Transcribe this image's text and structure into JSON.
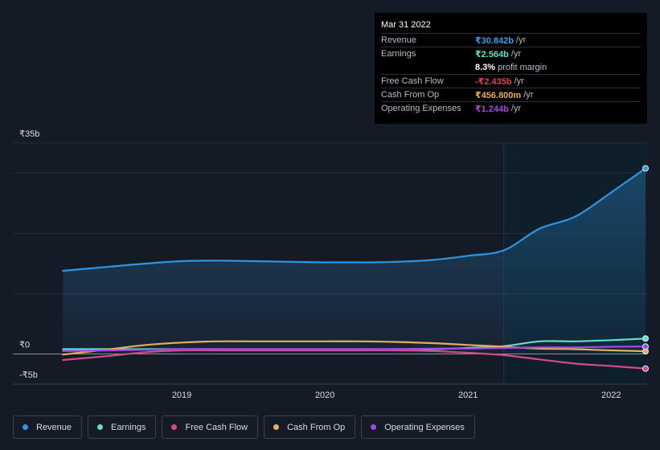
{
  "tooltip": {
    "date": "Mar 31 2022",
    "rows": [
      {
        "label": "Revenue",
        "value": "₹30.842b",
        "unit": "/yr",
        "color": "#3b9ee6"
      },
      {
        "label": "Earnings",
        "value": "₹2.564b",
        "unit": "/yr",
        "color": "#5fe0c8"
      },
      {
        "label": "",
        "value": "8.3%",
        "unit": "profit margin",
        "color": "#ffffff"
      },
      {
        "label": "Free Cash Flow",
        "value": "-₹2.435b",
        "unit": "/yr",
        "color": "#e2434f"
      },
      {
        "label": "Cash From Op",
        "value": "₹456.800m",
        "unit": "/yr",
        "color": "#e8ad58"
      },
      {
        "label": "Operating Expenses",
        "value": "₹1.244b",
        "unit": "/yr",
        "color": "#a24ae8"
      }
    ]
  },
  "legend": [
    {
      "label": "Revenue",
      "color": "#2f95e0"
    },
    {
      "label": "Earnings",
      "color": "#5fe0c8"
    },
    {
      "label": "Free Cash Flow",
      "color": "#d14b8a"
    },
    {
      "label": "Cash From Op",
      "color": "#e8ad58"
    },
    {
      "label": "Operating Expenses",
      "color": "#a24ae8"
    }
  ],
  "chart_data": {
    "type": "line",
    "ylim": [
      -5,
      35
    ],
    "y_tick_labels": [
      {
        "value": 35,
        "label": "₹35b"
      },
      {
        "value": 0,
        "label": "₹0"
      },
      {
        "value": -5,
        "label": "-₹5b"
      }
    ],
    "x_tick_labels": [
      {
        "value": 2019,
        "label": "2019"
      },
      {
        "value": 2020,
        "label": "2020"
      },
      {
        "value": 2021,
        "label": "2021"
      },
      {
        "value": 2022,
        "label": "2022"
      }
    ],
    "xlim": [
      2018.0,
      2022.24
    ],
    "highlight_start": 2021.25,
    "series": [
      {
        "name": "Revenue",
        "color": "#2f95e0",
        "area": true,
        "x": [
          2018.17,
          2018.5,
          2018.75,
          2019.0,
          2019.25,
          2019.5,
          2019.75,
          2020.0,
          2020.25,
          2020.5,
          2020.75,
          2021.0,
          2021.25,
          2021.5,
          2021.75,
          2022.0,
          2022.24
        ],
        "values": [
          13.8,
          14.5,
          15.0,
          15.4,
          15.5,
          15.4,
          15.3,
          15.2,
          15.2,
          15.3,
          15.6,
          16.3,
          17.2,
          20.8,
          22.8,
          26.8,
          30.8
        ]
      },
      {
        "name": "Earnings",
        "color": "#5fe0c8",
        "area": false,
        "x": [
          2018.17,
          2018.5,
          2018.75,
          2019.0,
          2019.25,
          2019.5,
          2019.75,
          2020.0,
          2020.25,
          2020.5,
          2020.75,
          2021.0,
          2021.25,
          2021.5,
          2021.75,
          2022.0,
          2022.24
        ],
        "values": [
          0.8,
          0.8,
          0.8,
          0.8,
          0.8,
          0.8,
          0.8,
          0.8,
          0.8,
          0.8,
          0.8,
          1.0,
          1.3,
          2.1,
          2.1,
          2.3,
          2.56
        ]
      },
      {
        "name": "Free Cash Flow",
        "color": "#d14b8a",
        "area": false,
        "x": [
          2018.17,
          2018.5,
          2018.75,
          2019.0,
          2019.25,
          2019.5,
          2019.75,
          2020.0,
          2020.25,
          2020.5,
          2020.75,
          2021.0,
          2021.25,
          2021.5,
          2021.75,
          2022.0,
          2022.24
        ],
        "values": [
          -1.0,
          -0.3,
          0.3,
          0.6,
          0.6,
          0.6,
          0.6,
          0.6,
          0.6,
          0.6,
          0.5,
          0.2,
          -0.2,
          -0.9,
          -1.6,
          -2.0,
          -2.43
        ]
      },
      {
        "name": "Cash From Op",
        "color": "#e8ad58",
        "area": false,
        "x": [
          2018.17,
          2018.5,
          2018.75,
          2019.0,
          2019.25,
          2019.5,
          2019.75,
          2020.0,
          2020.25,
          2020.5,
          2020.75,
          2021.0,
          2021.25,
          2021.5,
          2021.75,
          2022.0,
          2022.24
        ],
        "values": [
          -0.1,
          0.8,
          1.5,
          1.9,
          2.1,
          2.1,
          2.1,
          2.1,
          2.1,
          2.0,
          1.8,
          1.5,
          1.2,
          0.9,
          0.8,
          0.6,
          0.46
        ]
      },
      {
        "name": "Operating Expenses",
        "color": "#a24ae8",
        "area": false,
        "x": [
          2018.17,
          2018.5,
          2018.75,
          2019.0,
          2019.25,
          2019.5,
          2019.75,
          2020.0,
          2020.25,
          2020.5,
          2020.75,
          2021.0,
          2021.25,
          2021.5,
          2021.75,
          2022.0,
          2022.24
        ],
        "values": [
          0.5,
          0.6,
          0.7,
          0.8,
          0.8,
          0.8,
          0.8,
          0.8,
          0.8,
          0.8,
          0.9,
          0.9,
          1.0,
          1.1,
          1.1,
          1.2,
          1.24
        ]
      }
    ]
  }
}
